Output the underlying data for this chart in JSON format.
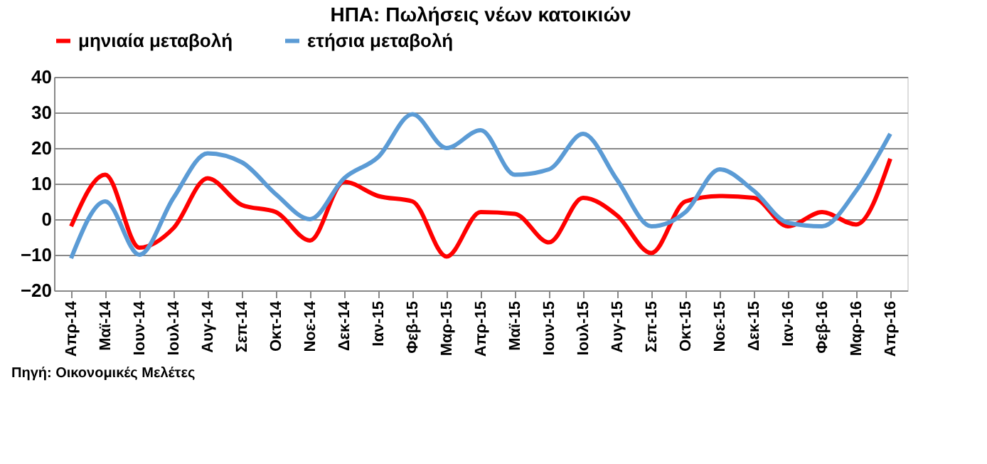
{
  "chart_data": {
    "type": "line",
    "title": "ΗΠΑ: Πωλήσεις νέων κατοικιών",
    "categories": [
      "Απρ-14",
      "Μαϊ-14",
      "Ιουν-14",
      "Ιουλ-14",
      "Αυγ-14",
      "Σεπ-14",
      "Οκτ-14",
      "Νοε-14",
      "Δεκ-14",
      "Ιαν-15",
      "Φεβ-15",
      "Μαρ-15",
      "Απρ-15",
      "Μαϊ-15",
      "Ιουν-15",
      "Ιουλ-15",
      "Αυγ-15",
      "Σεπ-15",
      "Οκτ-15",
      "Νοε-15",
      "Δεκ-15",
      "Ιαν-16",
      "Φεβ-16",
      "Μαρ-16",
      "Απρ-16"
    ],
    "series": [
      {
        "name": "μηνιαία μεταβολή",
        "color": "#ff0000",
        "values": [
          -2,
          12.5,
          -8,
          -2.5,
          11.5,
          4,
          2,
          -6,
          10.5,
          6.5,
          5,
          -10.5,
          2,
          1.5,
          -6.5,
          6,
          1,
          -9.5,
          5,
          6.5,
          6,
          -2,
          2,
          -1.5,
          17
        ]
      },
      {
        "name": "ετήσια μεταβολή",
        "color": "#5b9bd5",
        "values": [
          -11,
          5,
          -10,
          6,
          18.5,
          16,
          7,
          0,
          11.5,
          17.5,
          29.5,
          20,
          25,
          12.5,
          14,
          24,
          11,
          -2,
          2,
          14,
          8,
          -1,
          -2,
          8,
          24
        ]
      }
    ],
    "ylim": [
      -20,
      40
    ],
    "yticks": [
      -20,
      -10,
      0,
      10,
      20,
      30,
      40
    ],
    "grid": "y",
    "legend": "top",
    "line_style": "solid",
    "marker": "none",
    "annotations": [
      "Πηγή: Οικονομικές Μελέτες"
    ]
  }
}
